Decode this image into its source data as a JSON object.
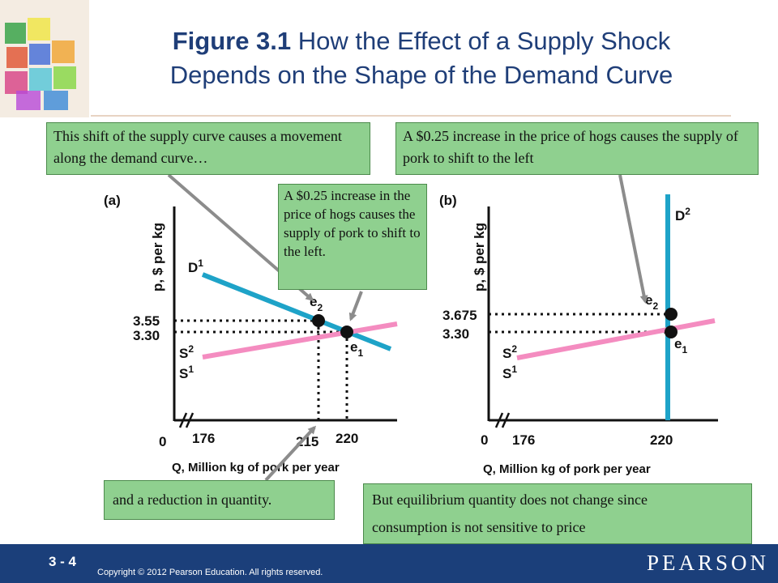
{
  "title": {
    "bold": "Figure 3.1",
    "rest_line1": " How the Effect of a Supply Shock",
    "line2": "Depends on the Shape of the Demand Curve"
  },
  "callouts": {
    "top_left": "This shift of the supply curve causes a movement along the demand curve…",
    "top_right": "A $0.25 increase in the price of hogs causes the supply of pork to shift to the left",
    "middle": "A $0.25 increase in the price of hogs causes the supply of pork to shift to the left.",
    "bottom_left": "and a reduction in quantity.",
    "bottom_right_line1": "But equilibrium quantity does not change since",
    "bottom_right_line2": "consumption is not sensitive to price"
  },
  "panel_a": {
    "label": "(a)",
    "ylabel": "p, $ per kg",
    "xlabel": "Q, Million kg of pork per year",
    "origin": "0",
    "axis_break_tick": "176",
    "y_ticks": [
      "3.55",
      "3.30"
    ],
    "x_ticks": [
      "215",
      "220"
    ],
    "demand_label": "D",
    "demand_sub": "1",
    "supply_labels": [
      {
        "base": "S",
        "sub": "2"
      },
      {
        "base": "S",
        "sub": "1"
      }
    ],
    "points": [
      {
        "base": "e",
        "sub": "2"
      },
      {
        "base": "e",
        "sub": "1"
      }
    ]
  },
  "panel_b": {
    "label": "(b)",
    "ylabel": "p, $ per kg",
    "xlabel": "Q, Million kg of pork per year",
    "origin": "0",
    "axis_break_tick": "176",
    "y_ticks": [
      "3.675",
      "3.30"
    ],
    "x_ticks": [
      "220"
    ],
    "demand_label": "D",
    "demand_sub": "2",
    "supply_labels": [
      {
        "base": "S",
        "sub": "2"
      },
      {
        "base": "S",
        "sub": "1"
      }
    ],
    "points": [
      {
        "base": "e",
        "sub": "2"
      },
      {
        "base": "e",
        "sub": "1"
      }
    ]
  },
  "colors": {
    "title": "#1f3e78",
    "demand": "#1ea3c8",
    "supply": "#f48cc0",
    "callout": "#8fd08f",
    "footer": "#1b3f7a",
    "arrow": "#8c8c8c"
  },
  "footer": {
    "page": "3 - 4",
    "copyright": "Copyright © 2012  Pearson Education. All rights reserved.",
    "brand": "PEARSON"
  }
}
